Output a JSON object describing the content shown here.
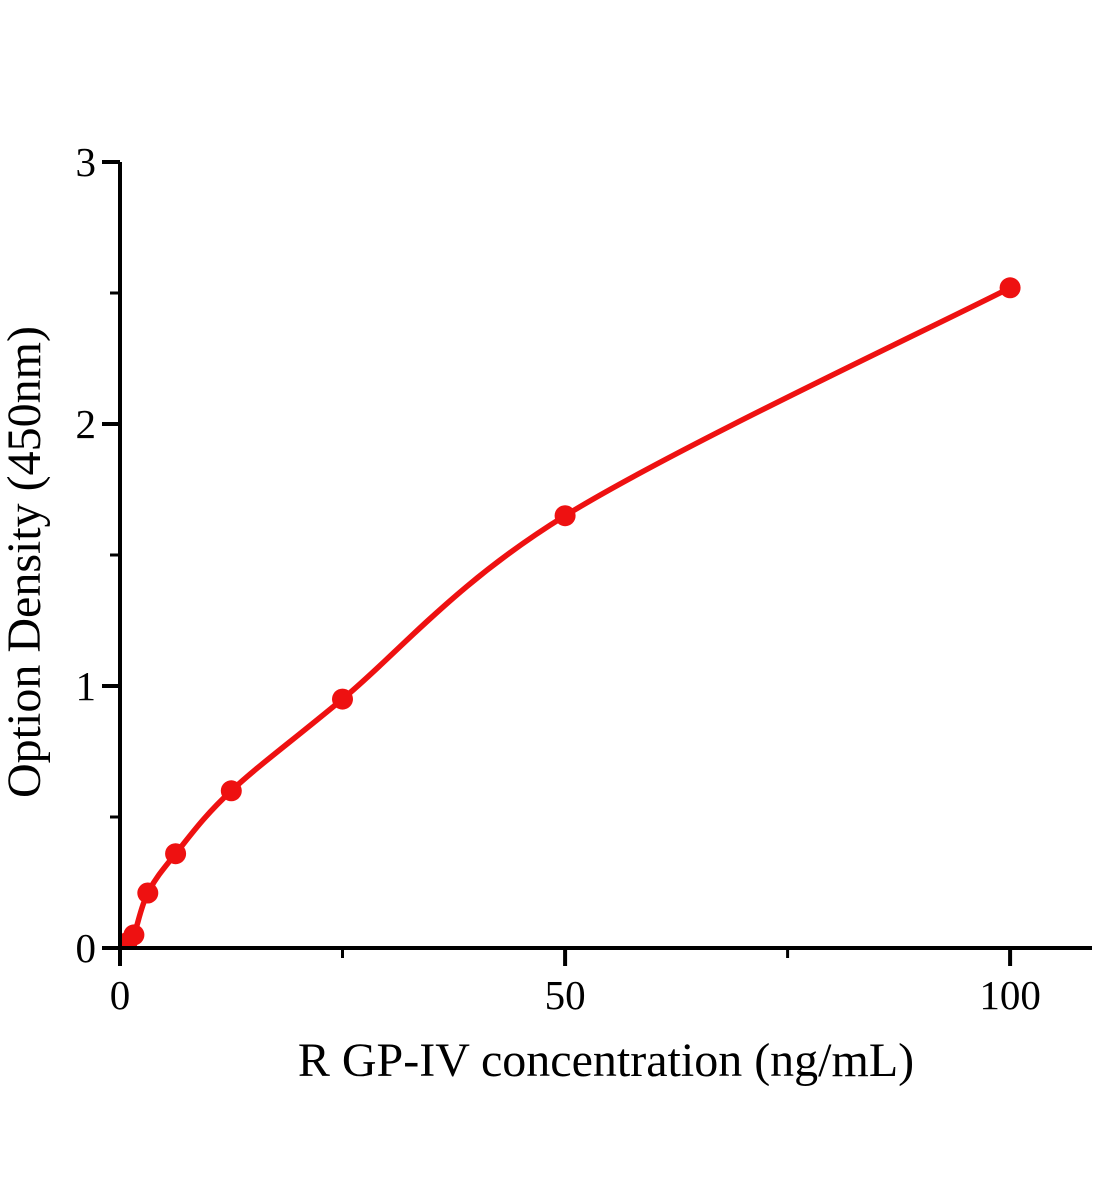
{
  "figure": {
    "background": "#ffffff",
    "text_color": "#000000"
  },
  "chart_data": {
    "type": "scatter",
    "title": "",
    "xlabel": "R GP-IV concentration (ng/mL)",
    "ylabel": "Option Density (450nm)",
    "xlim": [
      0,
      109.2
    ],
    "ylim": [
      0,
      3
    ],
    "grid": false,
    "legend": "none",
    "axis_color": "#000000",
    "x_ticks": {
      "major": [
        {
          "value": 0,
          "label": "0"
        },
        {
          "value": 50,
          "label": "50"
        },
        {
          "value": 100,
          "label": "100"
        }
      ],
      "minor": [
        25,
        75
      ]
    },
    "y_ticks": {
      "major": [
        {
          "value": 0,
          "label": "0"
        },
        {
          "value": 1,
          "label": "1"
        },
        {
          "value": 2,
          "label": "2"
        },
        {
          "value": 3,
          "label": "3"
        }
      ],
      "minor": [
        0.5,
        1.5,
        2.5
      ]
    },
    "series": [
      {
        "name": "R GP-IV standard curve",
        "color": "#ee1111",
        "marker": "circle",
        "line": "smooth",
        "points": [
          {
            "x": 0.78,
            "y": 0.02
          },
          {
            "x": 1.56,
            "y": 0.05
          },
          {
            "x": 3.12,
            "y": 0.21
          },
          {
            "x": 6.25,
            "y": 0.36
          },
          {
            "x": 12.5,
            "y": 0.6
          },
          {
            "x": 25,
            "y": 0.95
          },
          {
            "x": 50,
            "y": 1.65
          },
          {
            "x": 100,
            "y": 2.52
          }
        ]
      }
    ]
  }
}
